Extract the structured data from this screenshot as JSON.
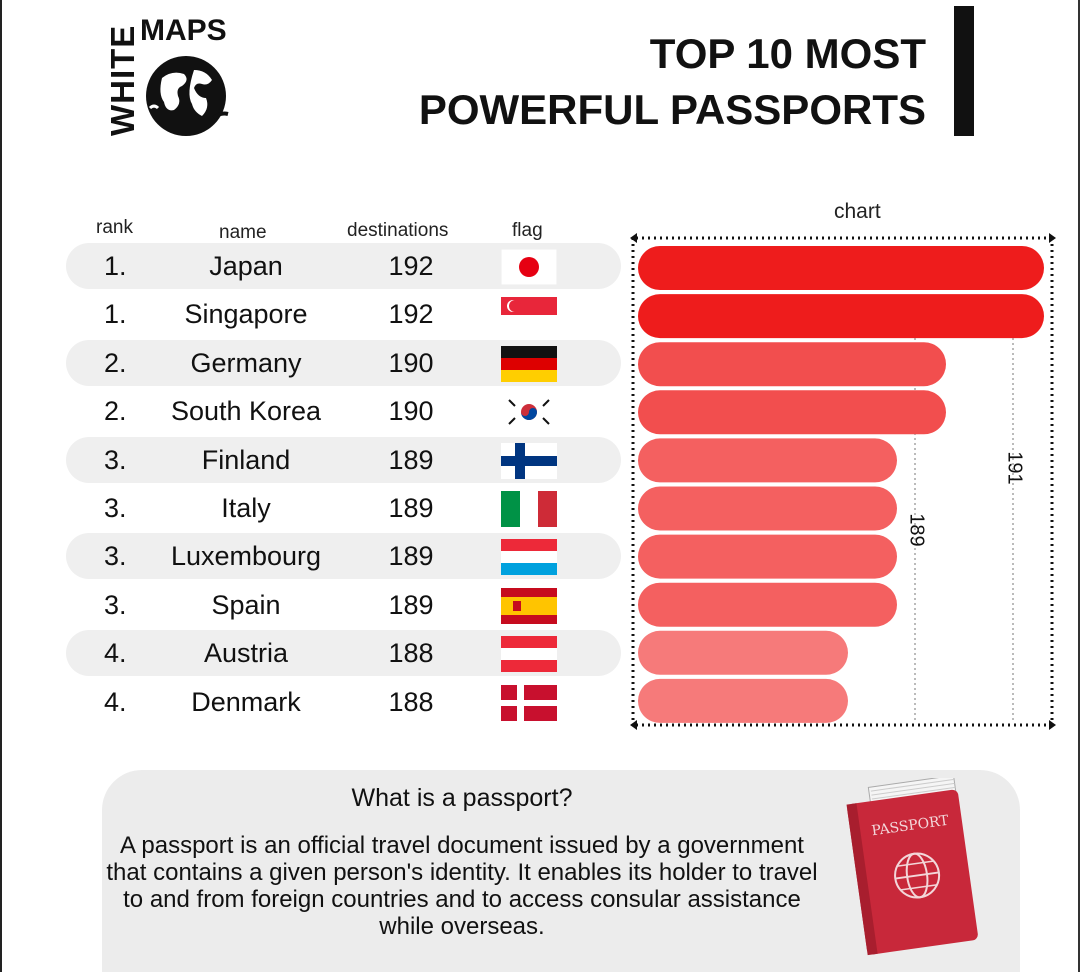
{
  "logo": {
    "vertical_text": "WHITE",
    "top_text": "MAPS"
  },
  "title": {
    "line1": "TOP 10 MOST",
    "line2": "POWERFUL PASSPORTS"
  },
  "headers": {
    "rank": "rank",
    "name": "name",
    "destinations": "destinations",
    "flag": "flag",
    "chart": "chart"
  },
  "rows": [
    {
      "rank": "1.",
      "name": "Japan",
      "destinations": "192",
      "flag": "japan-flag-icon"
    },
    {
      "rank": "1.",
      "name": "Singapore",
      "destinations": "192",
      "flag": "singapore-flag-icon"
    },
    {
      "rank": "2.",
      "name": "Germany",
      "destinations": "190",
      "flag": "germany-flag-icon"
    },
    {
      "rank": "2.",
      "name": "South Korea",
      "destinations": "190",
      "flag": "south-korea-flag-icon"
    },
    {
      "rank": "3.",
      "name": "Finland",
      "destinations": "189",
      "flag": "finland-flag-icon"
    },
    {
      "rank": "3.",
      "name": "Italy",
      "destinations": "189",
      "flag": "italy-flag-icon"
    },
    {
      "rank": "3.",
      "name": "Luxembourg",
      "destinations": "189",
      "flag": "luxembourg-flag-icon"
    },
    {
      "rank": "3.",
      "name": "Spain",
      "destinations": "189",
      "flag": "spain-flag-icon"
    },
    {
      "rank": "4.",
      "name": "Austria",
      "destinations": "188",
      "flag": "austria-flag-icon"
    },
    {
      "rank": "4.",
      "name": "Denmark",
      "destinations": "188",
      "flag": "denmark-flag-icon"
    }
  ],
  "chart_data": {
    "type": "bar",
    "orientation": "horizontal",
    "title": "chart",
    "categories": [
      "Japan",
      "Singapore",
      "Germany",
      "South Korea",
      "Finland",
      "Italy",
      "Luxembourg",
      "Spain",
      "Austria",
      "Denmark"
    ],
    "values": [
      192,
      192,
      190,
      190,
      189,
      189,
      189,
      189,
      188,
      188
    ],
    "reference_labels": [
      "191",
      "189"
    ],
    "reference_values": [
      191,
      189
    ],
    "colors": [
      "#ee1c1c",
      "#ee1c1c",
      "#f24e4e",
      "#f24e4e",
      "#f46060",
      "#f46060",
      "#f46060",
      "#f46060",
      "#f67a7a",
      "#f67a7a"
    ]
  },
  "info": {
    "title": "What is a passport?",
    "body": "A passport is an official travel document issued by a government that contains a given person's identity. It enables its holder to travel to and from foreign countries and to access consular assistance while overseas.",
    "passport_label": "PASSPORT"
  }
}
